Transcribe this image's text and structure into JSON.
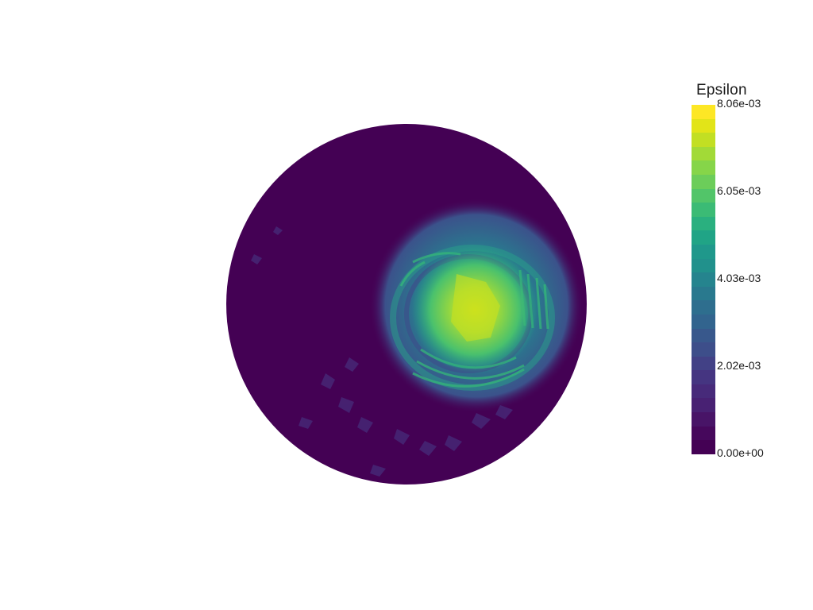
{
  "scalar_bar": {
    "title": "Epsilon",
    "tick_labels": [
      "8.06e-03",
      "6.05e-03",
      "4.03e-03",
      "2.02e-03",
      "0.00e+00"
    ],
    "tick_values": [
      0.00806,
      0.00605,
      0.00403,
      0.00202,
      0.0
    ],
    "range": [
      0.0,
      0.00806
    ],
    "colormap": "viridis",
    "band_colors": [
      "#fde725",
      "#e2e418",
      "#c2df23",
      "#a2da37",
      "#86d549",
      "#6ccd5a",
      "#52c569",
      "#3bbb75",
      "#2ab07f",
      "#20a486",
      "#1f988b",
      "#21918c",
      "#25848e",
      "#29798e",
      "#2e6e8e",
      "#32648e",
      "#38588c",
      "#3d4e8a",
      "#424186",
      "#453581",
      "#472a7a",
      "#482173",
      "#481467",
      "#46085c",
      "#440154"
    ]
  },
  "field": {
    "background_color": "#440154"
  }
}
